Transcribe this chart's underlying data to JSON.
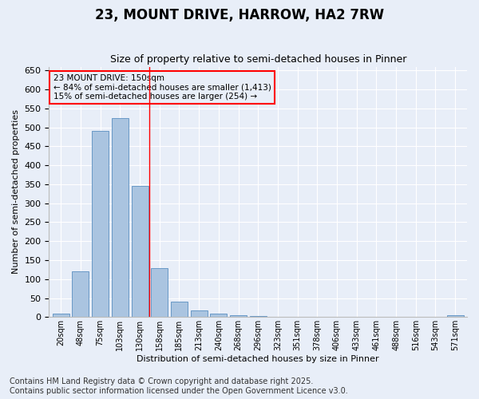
{
  "title": "23, MOUNT DRIVE, HARROW, HA2 7RW",
  "subtitle": "Size of property relative to semi-detached houses in Pinner",
  "xlabel": "Distribution of semi-detached houses by size in Pinner",
  "ylabel": "Number of semi-detached properties",
  "categories": [
    "20sqm",
    "48sqm",
    "75sqm",
    "103sqm",
    "130sqm",
    "158sqm",
    "185sqm",
    "213sqm",
    "240sqm",
    "268sqm",
    "296sqm",
    "323sqm",
    "351sqm",
    "378sqm",
    "406sqm",
    "433sqm",
    "461sqm",
    "488sqm",
    "516sqm",
    "543sqm",
    "571sqm"
  ],
  "values": [
    10,
    120,
    490,
    525,
    345,
    128,
    40,
    17,
    8,
    5,
    3,
    1,
    1,
    1,
    0,
    0,
    0,
    0,
    0,
    0,
    4
  ],
  "bar_color": "#aac4e0",
  "bar_edge_color": "#5a8fc0",
  "vline_x": 4.5,
  "vline_color": "red",
  "annotation_title": "23 MOUNT DRIVE: 150sqm",
  "annotation_line1": "← 84% of semi-detached houses are smaller (1,413)",
  "annotation_line2": "15% of semi-detached houses are larger (254) →",
  "annotation_box_color": "red",
  "ylim": [
    0,
    660
  ],
  "yticks": [
    0,
    50,
    100,
    150,
    200,
    250,
    300,
    350,
    400,
    450,
    500,
    550,
    600,
    650
  ],
  "background_color": "#e8eef8",
  "grid_color": "#ffffff",
  "footer_line1": "Contains HM Land Registry data © Crown copyright and database right 2025.",
  "footer_line2": "Contains public sector information licensed under the Open Government Licence v3.0.",
  "title_fontsize": 12,
  "subtitle_fontsize": 9,
  "footer_fontsize": 7,
  "ylabel_fontsize": 8,
  "xlabel_fontsize": 8
}
